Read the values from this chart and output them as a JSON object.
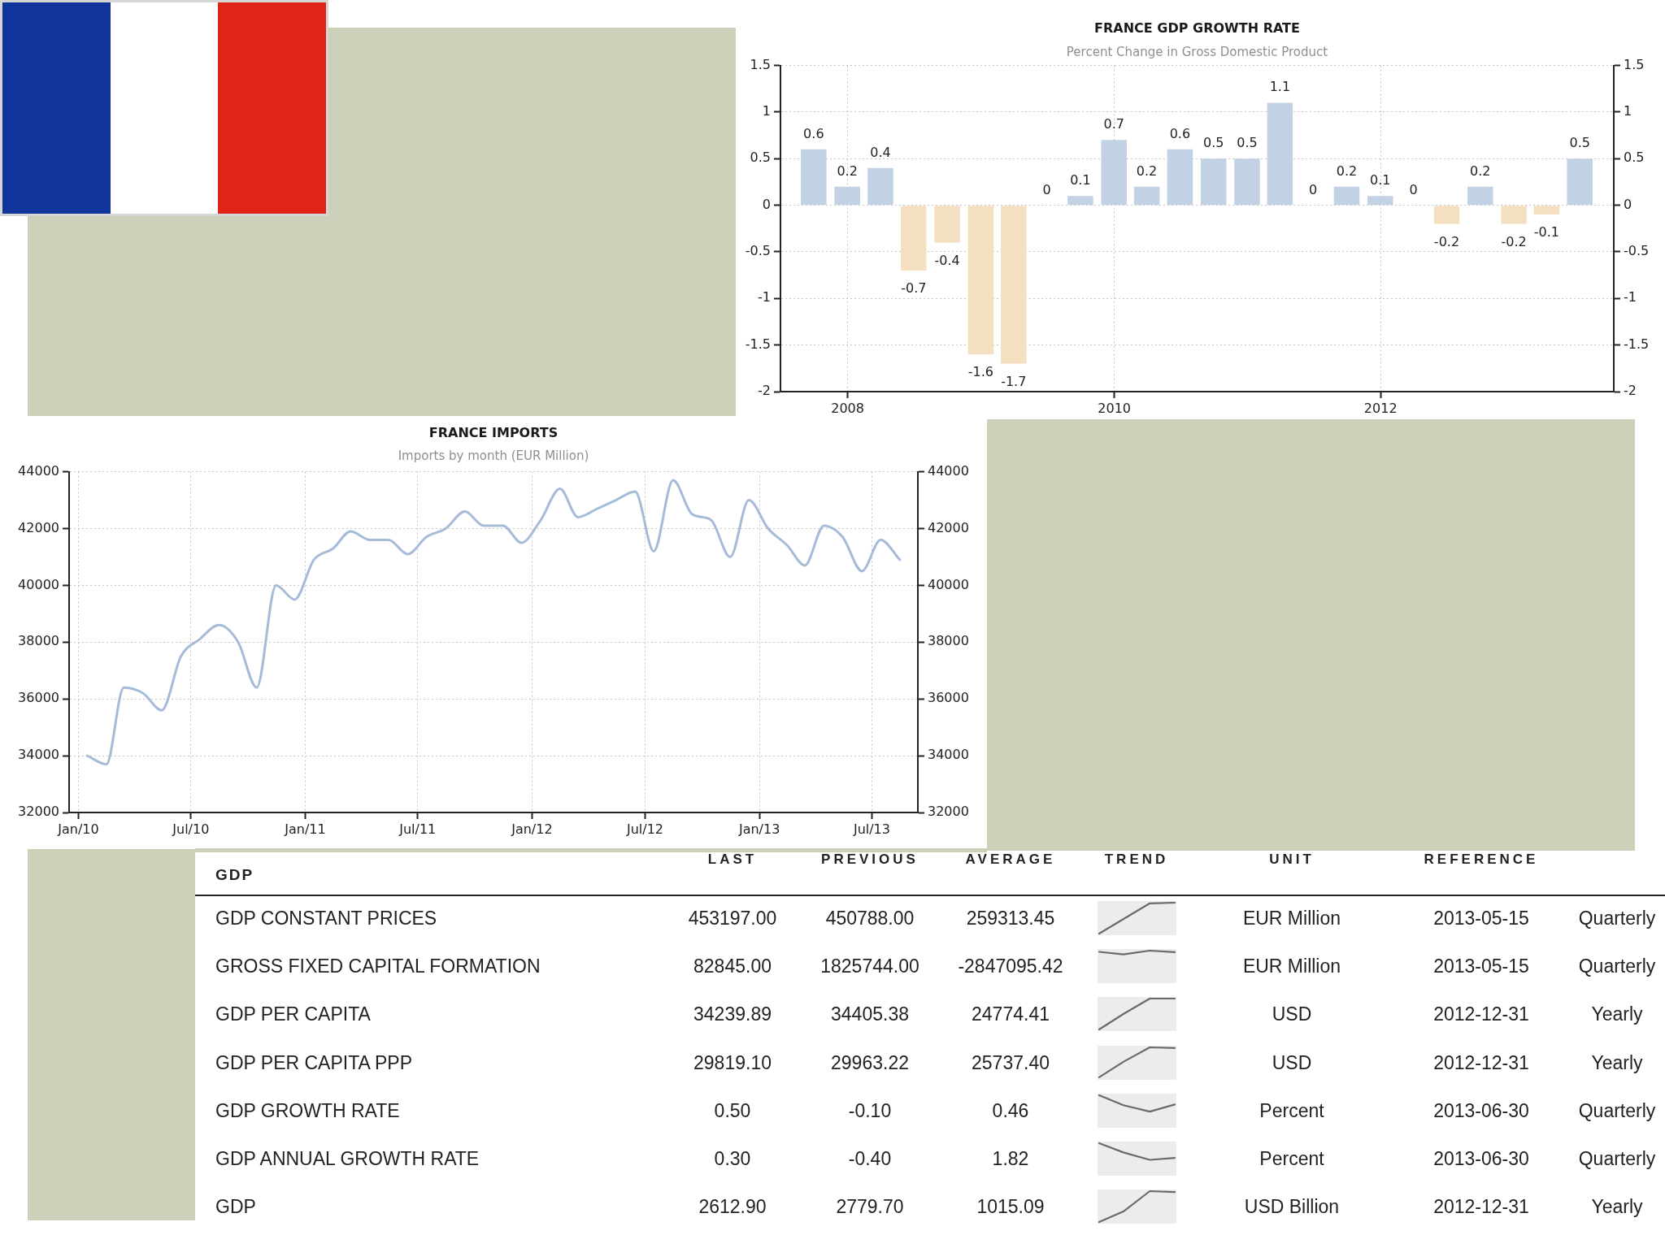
{
  "chart_data": [
    {
      "type": "bar",
      "title": "FRANCE GDP GROWTH RATE",
      "subtitle": "Percent Change in Gross Domestic Product",
      "x": [
        "2007-09-30",
        "2007-12-31",
        "2008-03-31",
        "2008-06-30",
        "2008-09-30",
        "2008-12-31",
        "2009-03-31",
        "2009-06-30",
        "2009-09-30",
        "2009-12-31",
        "2010-03-31",
        "2010-06-30",
        "2010-09-30",
        "2010-12-31",
        "2011-03-31",
        "2011-06-30",
        "2011-09-30",
        "2011-12-31",
        "2012-03-31",
        "2012-06-30",
        "2012-09-30",
        "2012-12-31",
        "2013-03-31",
        "2013-06-30"
      ],
      "values": [
        0.6,
        0.2,
        0.4,
        -0.7,
        -0.4,
        -1.6,
        -1.7,
        0,
        0.1,
        0.7,
        0.2,
        0.6,
        0.5,
        0.5,
        1.1,
        0,
        0.2,
        0.1,
        0,
        -0.2,
        0.2,
        -0.2,
        -0.1,
        0.5
      ],
      "colors": [
        "#c3d1e4",
        "#c3d1e4",
        "#c3d1e4",
        "#f4dfc0",
        "#f4dfc0",
        "#f4dfc0",
        "#f4dfc0",
        "#c3d1e4",
        "#c3d1e4",
        "#c3d1e4",
        "#c3d1e4",
        "#c3d1e4",
        "#c3d1e4",
        "#c3d1e4",
        "#c3d1e4",
        "#c3d1e4",
        "#c3d1e4",
        "#c3d1e4",
        "#c3d1e4",
        "#f4dfc0",
        "#c3d1e4",
        "#f4dfc0",
        "#f4dfc0",
        "#c3d1e4"
      ],
      "xlim": [
        "2007-07-01",
        "2013-10-01"
      ],
      "xticks": [
        "2008",
        "2010",
        "2012"
      ],
      "ylim": [
        -2,
        1.5
      ],
      "yticks": [
        -2,
        -1.5,
        -1,
        -0.5,
        0,
        0.5,
        1,
        1.5
      ],
      "y2lim": [
        -2,
        1.5
      ],
      "y2ticks": [
        -2,
        -1.5,
        -1,
        -0.5,
        0,
        0.5,
        1,
        1.5
      ],
      "grid": true,
      "data_labels": true
    },
    {
      "type": "line",
      "title": "FRANCE IMPORTS",
      "subtitle": "Imports by month (EUR Million)",
      "x": [
        "2010-01-15",
        "2010-02-15",
        "2010-03-15",
        "2010-04-15",
        "2010-05-15",
        "2010-06-15",
        "2010-07-15",
        "2010-08-15",
        "2010-09-15",
        "2010-10-15",
        "2010-11-15",
        "2010-12-15",
        "2011-01-15",
        "2011-02-15",
        "2011-03-15",
        "2011-04-15",
        "2011-05-15",
        "2011-06-15",
        "2011-07-15",
        "2011-08-15",
        "2011-09-15",
        "2011-10-15",
        "2011-11-15",
        "2011-12-15",
        "2012-01-15",
        "2012-02-15",
        "2012-03-15",
        "2012-04-15",
        "2012-05-15",
        "2012-06-15",
        "2012-07-15",
        "2012-08-15",
        "2012-09-15",
        "2012-10-15",
        "2012-11-15",
        "2012-12-15",
        "2013-01-15",
        "2013-02-15",
        "2013-03-15",
        "2013-04-15",
        "2013-05-15",
        "2013-06-15",
        "2013-07-15",
        "2013-08-15"
      ],
      "values": [
        34000,
        33700,
        36400,
        36200,
        35600,
        37500,
        38100,
        38600,
        38000,
        36400,
        40000,
        39500,
        40900,
        41300,
        41900,
        41600,
        41600,
        41100,
        41700,
        42000,
        42600,
        42100,
        42100,
        41500,
        42300,
        43400,
        42400,
        42700,
        43000,
        43300,
        41200,
        43700,
        42500,
        42300,
        41000,
        43000,
        42000,
        41400,
        40700,
        42100,
        41700,
        40500,
        41600,
        40900
      ],
      "color": "#a6bbd8",
      "xlim": [
        "2009-12-17",
        "2013-09-13"
      ],
      "xticks": [
        {
          "value": "2010-01-01",
          "label": "Jan/10"
        },
        {
          "value": "2010-07-01",
          "label": "Jul/10"
        },
        {
          "value": "2011-01-01",
          "label": "Jan/11"
        },
        {
          "value": "2011-07-01",
          "label": "Jul/11"
        },
        {
          "value": "2012-01-01",
          "label": "Jan/12"
        },
        {
          "value": "2012-07-01",
          "label": "Jul/12"
        },
        {
          "value": "2013-01-01",
          "label": "Jan/13"
        },
        {
          "value": "2013-07-01",
          "label": "Jul/13"
        }
      ],
      "ylim": [
        32000,
        44000
      ],
      "yticks": [
        32000,
        34000,
        36000,
        38000,
        40000,
        42000,
        44000
      ],
      "y2lim": [
        32000,
        44000
      ],
      "y2ticks": [
        32000,
        34000,
        36000,
        38000,
        40000,
        42000,
        44000
      ],
      "grid": true
    },
    {
      "type": "other",
      "title": "GDP",
      "categories": [
        "GDP CONSTANT PRICES",
        "GROSS FIXED CAPITAL FORMATION",
        "GDP PER CAPITA",
        "GDP PER CAPITA PPP",
        "GDP GROWTH RATE",
        "GDP ANNUAL GROWTH RATE",
        "GDP"
      ],
      "series": [
        {
          "name": "LAST",
          "values": [
            453197.0,
            82845.0,
            34239.89,
            29819.1,
            0.5,
            0.3,
            2612.9
          ],
          "value_labels": [
            "453197.00",
            "82845.00",
            "34239.89",
            "29819.10",
            "0.50",
            "0.30",
            "2612.90"
          ]
        },
        {
          "name": "PREVIOUS",
          "values": [
            450788.0,
            1825744.0,
            34405.38,
            29963.22,
            -0.1,
            -0.4,
            2779.7
          ],
          "value_labels": [
            "450788.00",
            "1825744.00",
            "34405.38",
            "29963.22",
            "-0.10",
            "-0.40",
            "2779.70"
          ]
        },
        {
          "name": "AVERAGE",
          "values": [
            259313.45,
            -2847095.42,
            24774.41,
            25737.4,
            0.46,
            1.82,
            1015.09
          ],
          "value_labels": [
            "259313.45",
            "-2847095.42",
            "24774.41",
            "25737.40",
            "0.46",
            "1.82",
            "1015.09"
          ]
        },
        {
          "name": "TREND",
          "values": [
            null,
            null,
            null,
            null,
            null,
            null,
            null
          ]
        },
        {
          "name": "UNIT",
          "values": [
            null,
            null,
            null,
            null,
            null,
            null,
            null
          ],
          "value_labels": [
            "EUR Million",
            "EUR Million",
            "USD",
            "USD",
            "Percent",
            "Percent",
            "USD Billion"
          ]
        },
        {
          "name": "REFERENCE",
          "values": [
            null,
            null,
            null,
            null,
            null,
            null,
            null
          ],
          "value_labels": [
            "2013-05-15",
            "2013-05-15",
            "2012-12-31",
            "2012-12-31",
            "2013-06-30",
            "2013-06-30",
            "2012-12-31"
          ]
        },
        {
          "values": [
            null,
            null,
            null,
            null,
            null,
            null,
            null
          ],
          "value_labels": [
            "Quarterly",
            "Quarterly",
            "Yearly",
            "Yearly",
            "Quarterly",
            "Quarterly",
            "Yearly"
          ]
        }
      ]
    }
  ]
}
